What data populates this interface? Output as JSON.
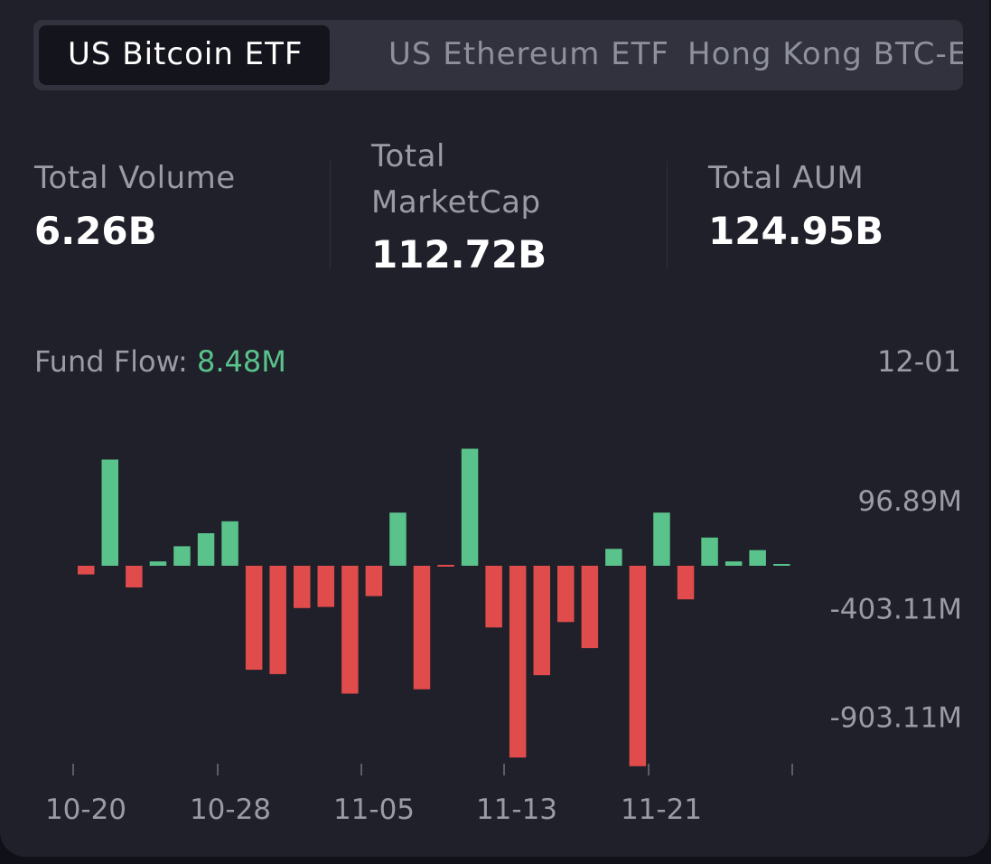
{
  "tabs": [
    {
      "label": "US Bitcoin ETF",
      "active": true
    },
    {
      "label": "US Ethereum ETF",
      "active": false
    },
    {
      "label": "Hong Kong BTC-E",
      "active": false
    }
  ],
  "stats": {
    "volume": {
      "label": "Total Volume",
      "value": "6.26B"
    },
    "marketcap": {
      "label_line1": "Total",
      "label_line2": "MarketCap",
      "value": "112.72B"
    },
    "aum": {
      "label": "Total AUM",
      "value": "124.95B"
    }
  },
  "fund_flow": {
    "label": "Fund Flow:",
    "value": "8.48M",
    "date": "12-01"
  },
  "colors": {
    "positive": "#5ac38c",
    "negative": "#e04b4b",
    "background": "#1f2029"
  },
  "chart_data": {
    "type": "bar",
    "y_tick_labels": [
      "96.89M",
      "-403.11M",
      "-903.11M"
    ],
    "y_ticks": [
      96.89,
      -403.11,
      -903.11
    ],
    "x_tick_labels": [
      "10-20",
      "10-28",
      "11-05",
      "11-13",
      "11-21"
    ],
    "ylim": [
      -925,
      540
    ],
    "grid": false,
    "series": [
      {
        "values_millions": [
          -40,
          490,
          -100,
          20,
          90,
          150,
          205,
          -480,
          -500,
          -195,
          -190,
          -590,
          -140,
          245,
          -570,
          -5,
          540,
          -285,
          -885,
          -505,
          -260,
          -380,
          78,
          -925,
          245,
          -155,
          130,
          20,
          72,
          8.48
        ]
      }
    ]
  }
}
